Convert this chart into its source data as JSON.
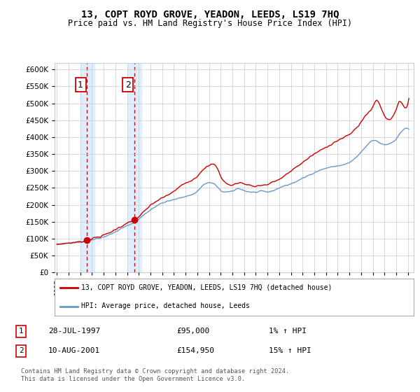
{
  "title": "13, COPT ROYD GROVE, YEADON, LEEDS, LS19 7HQ",
  "subtitle": "Price paid vs. HM Land Registry's House Price Index (HPI)",
  "legend_line1": "13, COPT ROYD GROVE, YEADON, LEEDS, LS19 7HQ (detached house)",
  "legend_line2": "HPI: Average price, detached house, Leeds",
  "footnote": "Contains HM Land Registry data © Crown copyright and database right 2024.\nThis data is licensed under the Open Government Licence v3.0.",
  "sale1_date": "28-JUL-1997",
  "sale1_price": "£95,000",
  "sale1_hpi": "1% ↑ HPI",
  "sale2_date": "10-AUG-2001",
  "sale2_price": "£154,950",
  "sale2_hpi": "15% ↑ HPI",
  "sale1_year": 1997.57,
  "sale1_value": 95000,
  "sale2_year": 2001.61,
  "sale2_value": 154950,
  "ylim": [
    0,
    620000
  ],
  "yticks": [
    0,
    50000,
    100000,
    150000,
    200000,
    250000,
    300000,
    350000,
    400000,
    450000,
    500000,
    550000,
    600000
  ],
  "hpi_color": "#6699cc",
  "price_color": "#cc0000",
  "bg_color": "#ffffff",
  "grid_color": "#cccccc",
  "shade_color": "#ddeeff",
  "sale1_shade_start": 1997.0,
  "sale1_shade_end": 1998.2,
  "sale2_shade_start": 2001.0,
  "sale2_shade_end": 2002.2,
  "xmin": 1994.8,
  "xmax": 2025.5
}
